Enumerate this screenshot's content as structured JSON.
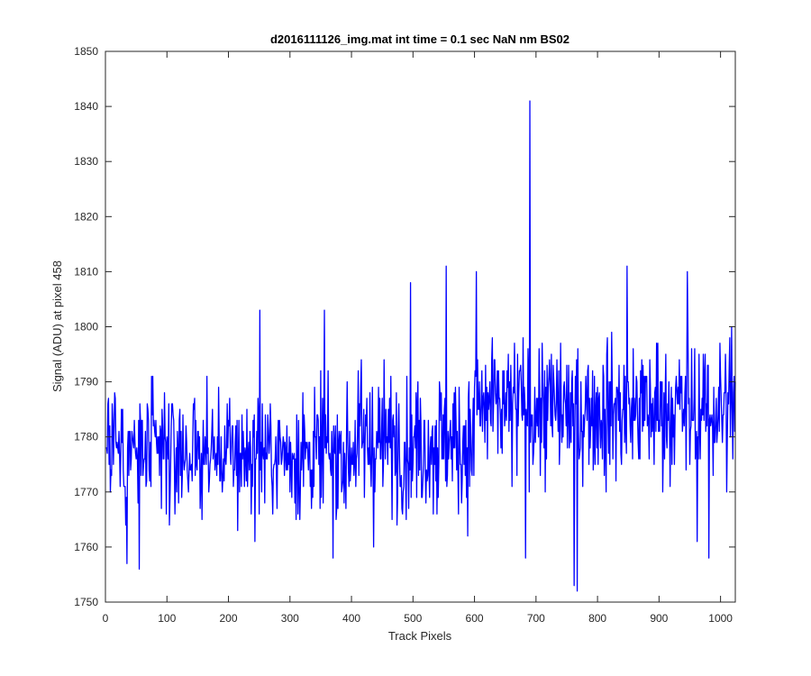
{
  "chart_data": {
    "type": "line",
    "title": "d2016111126_img.mat int time = 0.1 sec  NaN nm BS02",
    "xlabel": "Track Pixels",
    "ylabel": "Signal (ADU) at pixel 458",
    "xlim": [
      0,
      1024
    ],
    "ylim": [
      1750,
      1850
    ],
    "xticks": [
      0,
      100,
      200,
      300,
      400,
      500,
      600,
      700,
      800,
      900,
      1000
    ],
    "yticks": [
      1750,
      1760,
      1770,
      1780,
      1790,
      1800,
      1810,
      1820,
      1830,
      1840,
      1850
    ],
    "grid": false,
    "series": [
      {
        "color": "#0000ff",
        "x": [
          1,
          1024
        ],
        "y": [
          1778,
          1790
        ],
        "segments": [
          {
            "x_start": 0,
            "x_end": 400,
            "mean": 1777,
            "noise_sd": 7
          },
          {
            "x_start": 400,
            "x_end": 600,
            "mean": 1779,
            "noise_sd": 8
          },
          {
            "x_start": 600,
            "x_end": 1024,
            "mean": 1785,
            "noise_sd": 8
          }
        ],
        "peaks": [
          {
            "x": 690,
            "y": 1841
          },
          {
            "x": 554,
            "y": 1811
          },
          {
            "x": 848,
            "y": 1811
          },
          {
            "x": 251,
            "y": 1803
          },
          {
            "x": 356,
            "y": 1803
          },
          {
            "x": 496,
            "y": 1808
          },
          {
            "x": 603,
            "y": 1810
          },
          {
            "x": 946,
            "y": 1810
          },
          {
            "x": 1018,
            "y": 1800
          }
        ],
        "troughs": [
          {
            "x": 762,
            "y": 1753
          },
          {
            "x": 767,
            "y": 1752
          },
          {
            "x": 55,
            "y": 1756
          },
          {
            "x": 35,
            "y": 1757
          },
          {
            "x": 370,
            "y": 1758
          },
          {
            "x": 683,
            "y": 1758
          },
          {
            "x": 981,
            "y": 1758
          },
          {
            "x": 962,
            "y": 1761
          }
        ]
      }
    ]
  }
}
